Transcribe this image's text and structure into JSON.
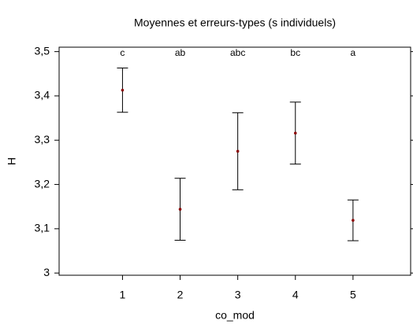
{
  "chart_data": {
    "type": "errorbar",
    "title": "Moyennes et erreurs-types (s individuels)",
    "xlabel": "co_mod",
    "ylabel": "H",
    "x": [
      1,
      2,
      3,
      4,
      5
    ],
    "values": [
      3.413,
      3.144,
      3.275,
      3.316,
      3.119
    ],
    "errors": [
      0.05,
      0.07,
      0.087,
      0.07,
      0.046
    ],
    "group_labels": [
      "c",
      "ab",
      "abc",
      "bc",
      "a"
    ],
    "color": "#8b0000",
    "xlim": [
      -0.1,
      6
    ],
    "xticks": [
      1,
      2,
      3,
      4,
      5
    ],
    "ylim": [
      2.995,
      3.51
    ],
    "yticks": [
      3,
      {
        "value": 3.1,
        "label": "3,1"
      },
      {
        "value": 3.2,
        "label": "3,2"
      },
      {
        "value": 3.3,
        "label": "3,3"
      },
      {
        "value": 3.4,
        "label": "3,4"
      },
      {
        "value": 3.5,
        "label": "3,5"
      }
    ]
  }
}
